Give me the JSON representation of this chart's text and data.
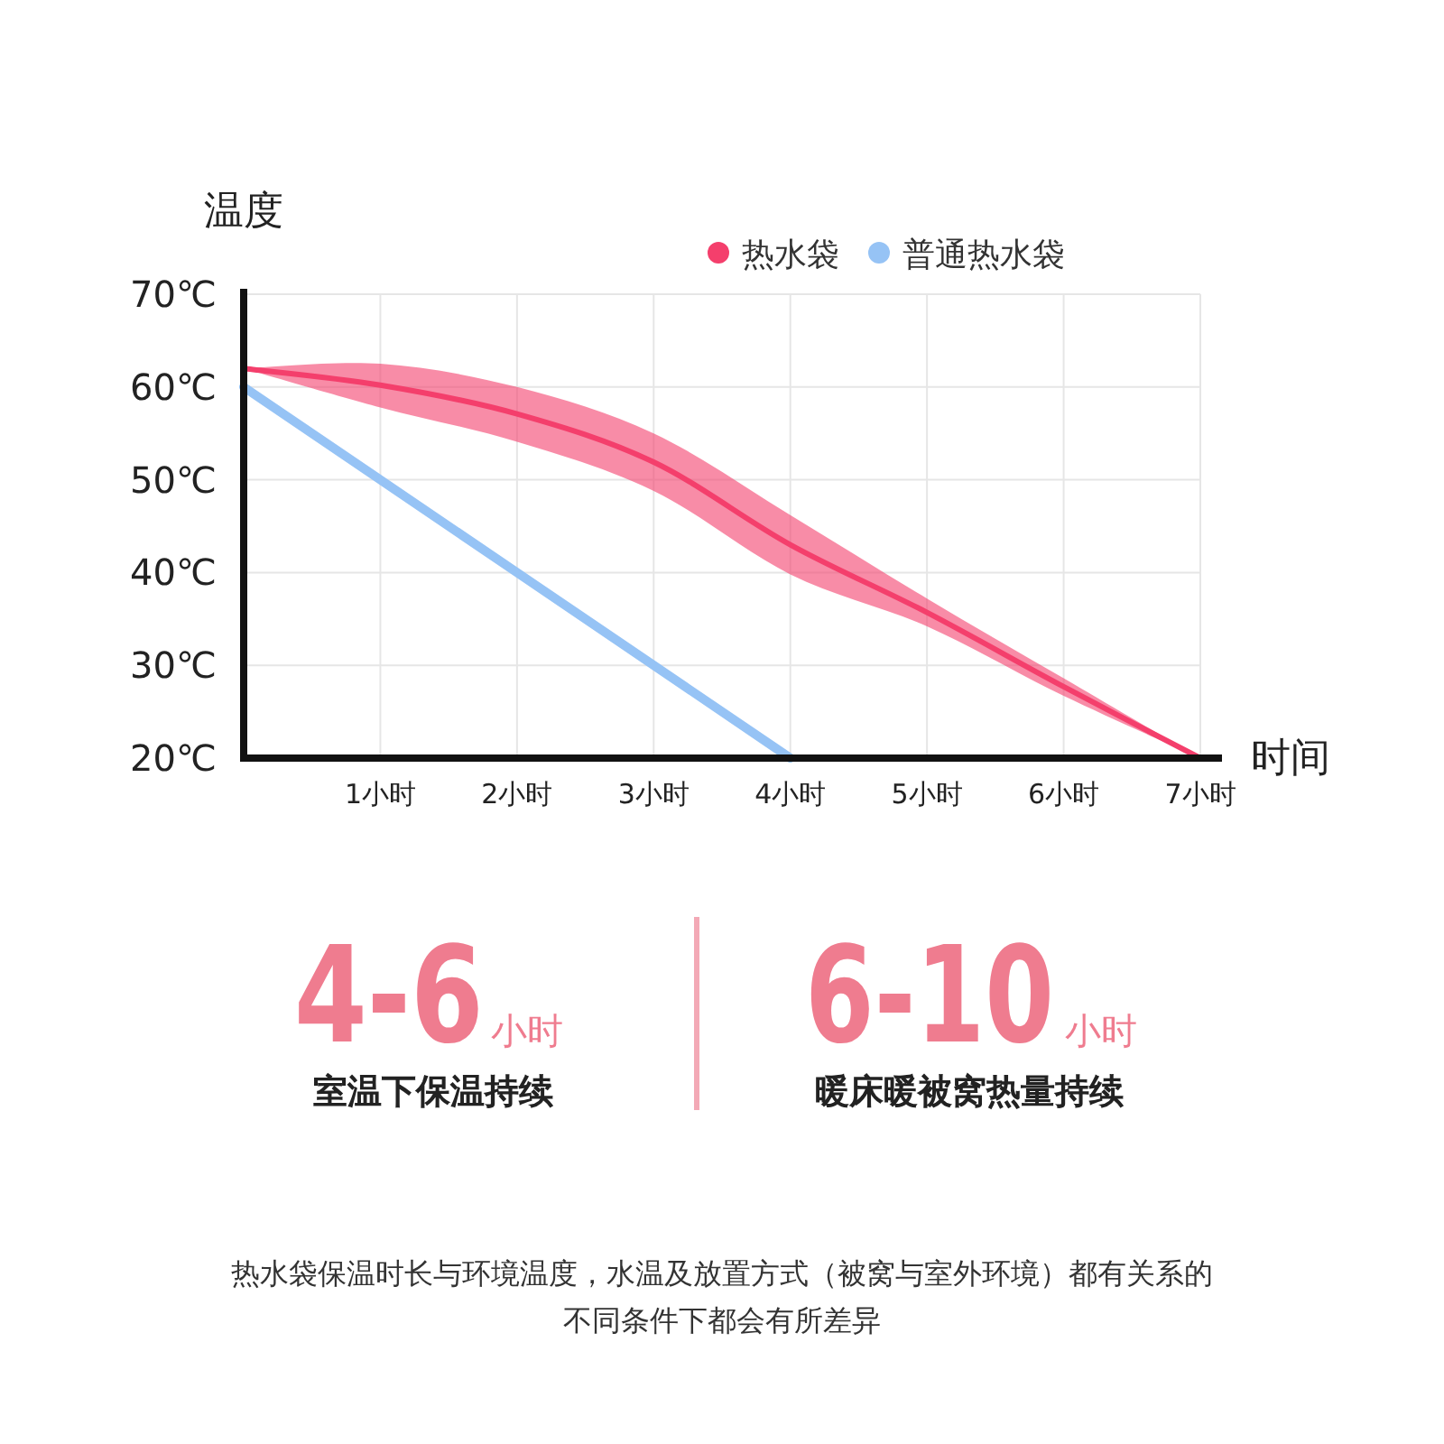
{
  "chart_data": {
    "type": "line",
    "xlabel": "时间",
    "ylabel": "温度",
    "x": [
      0,
      1,
      2,
      3,
      4,
      5,
      6,
      7
    ],
    "xlim": [
      0,
      7
    ],
    "ylim": [
      20,
      70
    ],
    "xticks": [
      {
        "value": 1,
        "label": "1小时"
      },
      {
        "value": 2,
        "label": "2小时"
      },
      {
        "value": 3,
        "label": "3小时"
      },
      {
        "value": 4,
        "label": "4小时"
      },
      {
        "value": 5,
        "label": "5小时"
      },
      {
        "value": 6,
        "label": "6小时"
      },
      {
        "value": 7,
        "label": "7小时"
      }
    ],
    "yticks": [
      {
        "value": 20,
        "label": "20℃"
      },
      {
        "value": 30,
        "label": "30℃"
      },
      {
        "value": 40,
        "label": "40℃"
      },
      {
        "value": 50,
        "label": "50℃"
      },
      {
        "value": 60,
        "label": "60℃"
      },
      {
        "value": 70,
        "label": "70℃"
      }
    ],
    "grid": true,
    "legend": "top right",
    "series": [
      {
        "name": "热水袋",
        "color": "#f43f6c",
        "values": [
          62,
          60.2,
          57.1,
          51.9,
          43,
          35.7,
          27.7,
          20
        ],
        "lower": [
          62,
          57.8,
          54.1,
          48.8,
          39.8,
          34.2,
          26.7,
          20
        ],
        "upper": [
          62,
          62.5,
          60,
          55,
          46.2,
          37.2,
          28.6,
          20
        ]
      },
      {
        "name": "普通热水袋",
        "color": "#96c3f5",
        "x": [
          0,
          4
        ],
        "values": [
          60,
          20
        ]
      }
    ],
    "annotations": [
      "4-6",
      "小时",
      "室温下保温持续",
      "6-10",
      "小时",
      "暖床暖被窝热量持续",
      "热水袋保温时长与环境温度，水温及放置方式（被窝与室外环境）都有关系的",
      "不同条件下都会有所差异"
    ]
  }
}
